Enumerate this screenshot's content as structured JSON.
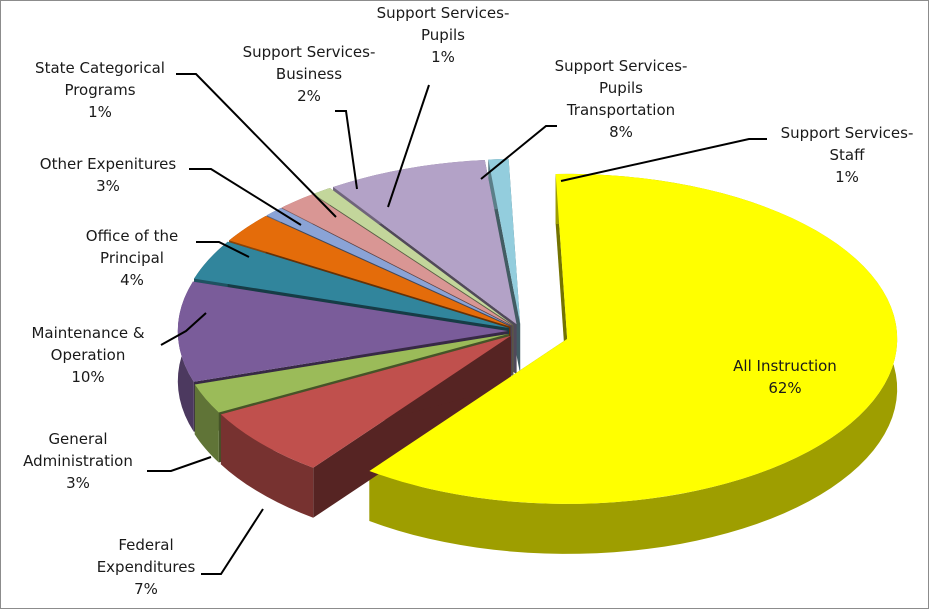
{
  "chart_data": {
    "type": "pie",
    "style": "3d-exploded",
    "title": "",
    "legend": "none",
    "slices": [
      {
        "label_lines": [
          "All Instruction",
          "62%"
        ],
        "value": 62,
        "color": "#ffff00"
      },
      {
        "label_lines": [
          "Federal",
          "Expenditures",
          "7%"
        ],
        "value": 7,
        "color": "#c0504d"
      },
      {
        "label_lines": [
          "General",
          "Administration",
          "3%"
        ],
        "value": 3,
        "color": "#9bbb59"
      },
      {
        "label_lines": [
          "Maintenance &",
          "Operation",
          "10%"
        ],
        "value": 10,
        "color": "#7a5c9a"
      },
      {
        "label_lines": [
          "Office of the",
          "Principal",
          "4%"
        ],
        "value": 4,
        "color": "#31859c"
      },
      {
        "label_lines": [
          "Other Expenitures",
          "3%"
        ],
        "value": 3,
        "color": "#e46c0a"
      },
      {
        "label_lines": [
          "State Categorical",
          "Programs",
          "1%"
        ],
        "value": 1,
        "color": "#8aa3d6"
      },
      {
        "label_lines": [
          "Support Services-",
          "Business",
          "2%"
        ],
        "value": 2,
        "color": "#d99694"
      },
      {
        "label_lines": [
          "Support Services-",
          "Pupils",
          "1%"
        ],
        "value": 1,
        "color": "#c3d69b"
      },
      {
        "label_lines": [
          "Support Services-",
          "Pupils",
          "Transportation",
          "8%"
        ],
        "value": 8,
        "color": "#b3a2c7"
      },
      {
        "label_lines": [
          "Support Services-",
          "Staff",
          "1%"
        ],
        "value": 1,
        "color": "#93cddd"
      }
    ]
  }
}
